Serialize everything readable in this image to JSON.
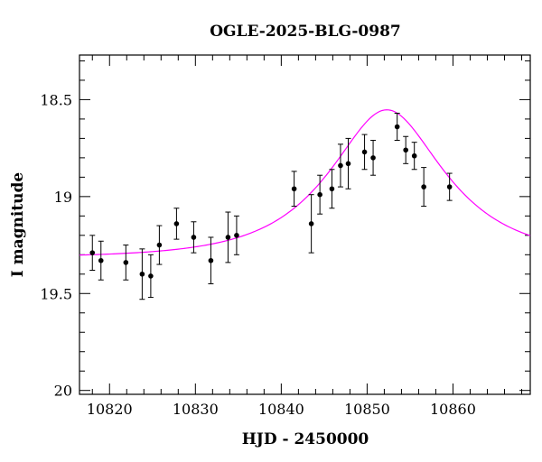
{
  "chart_data": {
    "type": "scatter",
    "title": "OGLE-2025-BLG-0987",
    "xlabel": "HJD - 2450000",
    "ylabel": "I magnitude",
    "xlim": [
      10816.5,
      10869
    ],
    "ylim": [
      20.02,
      18.27
    ],
    "y_inverted": true,
    "xticks": [
      10820,
      10830,
      10840,
      10850,
      10860
    ],
    "xtick_labels": [
      "10820",
      "10830",
      "10840",
      "10850",
      "10860"
    ],
    "yticks": [
      18.5,
      19,
      19.5,
      20
    ],
    "ytick_labels": [
      "18.5",
      "19",
      "19.5",
      "20"
    ],
    "grid": false,
    "series": [
      {
        "kind": "points_with_errorbars",
        "color": "#000000",
        "points": [
          {
            "x": 10818.0,
            "y": 19.29,
            "err": 0.09
          },
          {
            "x": 10819.0,
            "y": 19.33,
            "err": 0.1
          },
          {
            "x": 10821.9,
            "y": 19.34,
            "err": 0.09
          },
          {
            "x": 10823.8,
            "y": 19.4,
            "err": 0.13
          },
          {
            "x": 10824.8,
            "y": 19.41,
            "err": 0.11
          },
          {
            "x": 10825.8,
            "y": 19.25,
            "err": 0.1
          },
          {
            "x": 10827.8,
            "y": 19.14,
            "err": 0.08
          },
          {
            "x": 10829.8,
            "y": 19.21,
            "err": 0.08
          },
          {
            "x": 10831.8,
            "y": 19.33,
            "err": 0.12
          },
          {
            "x": 10833.8,
            "y": 19.21,
            "err": 0.13
          },
          {
            "x": 10834.8,
            "y": 19.2,
            "err": 0.1
          },
          {
            "x": 10841.5,
            "y": 18.96,
            "err": 0.09
          },
          {
            "x": 10843.5,
            "y": 19.14,
            "err": 0.15
          },
          {
            "x": 10844.5,
            "y": 18.99,
            "err": 0.1
          },
          {
            "x": 10845.9,
            "y": 18.96,
            "err": 0.1
          },
          {
            "x": 10846.9,
            "y": 18.84,
            "err": 0.11
          },
          {
            "x": 10847.8,
            "y": 18.83,
            "err": 0.13
          },
          {
            "x": 10849.7,
            "y": 18.77,
            "err": 0.09
          },
          {
            "x": 10850.7,
            "y": 18.8,
            "err": 0.09
          },
          {
            "x": 10853.5,
            "y": 18.64,
            "err": 0.07
          },
          {
            "x": 10854.5,
            "y": 18.76,
            "err": 0.07
          },
          {
            "x": 10855.5,
            "y": 18.79,
            "err": 0.07
          },
          {
            "x": 10856.6,
            "y": 18.95,
            "err": 0.1
          },
          {
            "x": 10859.6,
            "y": 18.95,
            "err": 0.07
          }
        ]
      },
      {
        "kind": "model_curve",
        "color": "#ff00ff",
        "model": {
          "baseline_mag": 19.315,
          "t0": 10852.3,
          "u0": 0.55,
          "tE": 11.0
        }
      }
    ]
  }
}
